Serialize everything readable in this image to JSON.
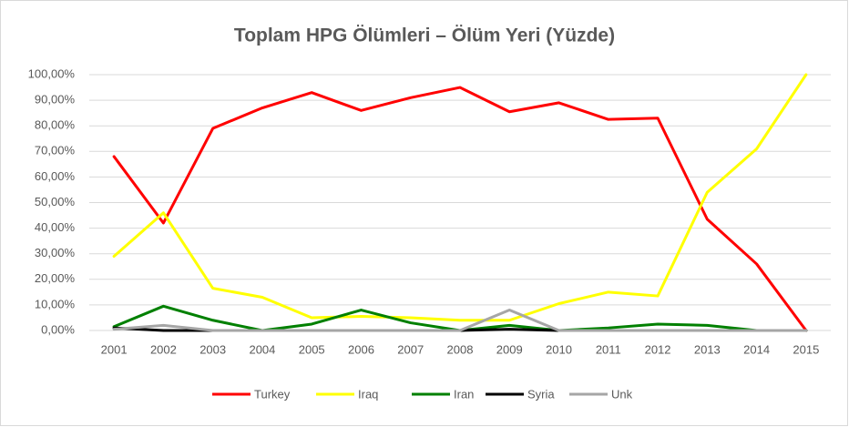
{
  "chart_data": {
    "type": "line",
    "title": "Toplam HPG Ölümleri – Ölüm Yeri (Yüzde)",
    "categories": [
      "2001",
      "2002",
      "2003",
      "2004",
      "2005",
      "2006",
      "2007",
      "2008",
      "2009",
      "2010",
      "2011",
      "2012",
      "2013",
      "2014",
      "2015"
    ],
    "series": [
      {
        "name": "Turkey",
        "color": "#ff0000",
        "values": [
          68,
          42,
          79,
          87,
          93,
          86,
          91,
          95,
          85.5,
          89,
          82.5,
          83,
          43.5,
          26,
          0
        ]
      },
      {
        "name": "Iraq",
        "color": "#ffff00",
        "values": [
          29,
          46,
          16.5,
          13,
          5,
          5.5,
          5,
          4,
          4,
          10.5,
          15,
          13.5,
          54,
          71,
          100
        ]
      },
      {
        "name": "Iran",
        "color": "#008000",
        "values": [
          1.5,
          9.5,
          4,
          0,
          2.5,
          8,
          3,
          0,
          2,
          0,
          1,
          2.5,
          2,
          0,
          0
        ]
      },
      {
        "name": "Syria",
        "color": "#000000",
        "values": [
          1,
          0,
          0,
          0,
          0,
          0,
          0,
          0,
          0.5,
          0,
          0,
          0,
          0,
          0,
          0
        ]
      },
      {
        "name": "Unk",
        "color": "#a6a6a6",
        "values": [
          0.5,
          2,
          0,
          0,
          0,
          0,
          0,
          0,
          8,
          0,
          0,
          0,
          0,
          0,
          0
        ]
      }
    ],
    "ylim": [
      0,
      100
    ],
    "yticks": [
      {
        "value": 0,
        "label": "0,00%"
      },
      {
        "value": 10,
        "label": "10,00%"
      },
      {
        "value": 20,
        "label": "20,00%"
      },
      {
        "value": 30,
        "label": "30,00%"
      },
      {
        "value": 40,
        "label": "40,00%"
      },
      {
        "value": 50,
        "label": "50,00%"
      },
      {
        "value": 60,
        "label": "60,00%"
      },
      {
        "value": 70,
        "label": "70,00%"
      },
      {
        "value": 80,
        "label": "80,00%"
      },
      {
        "value": 90,
        "label": "90,00%"
      },
      {
        "value": 100,
        "label": "100,00%"
      }
    ],
    "grid": true,
    "legend": "bottom"
  }
}
